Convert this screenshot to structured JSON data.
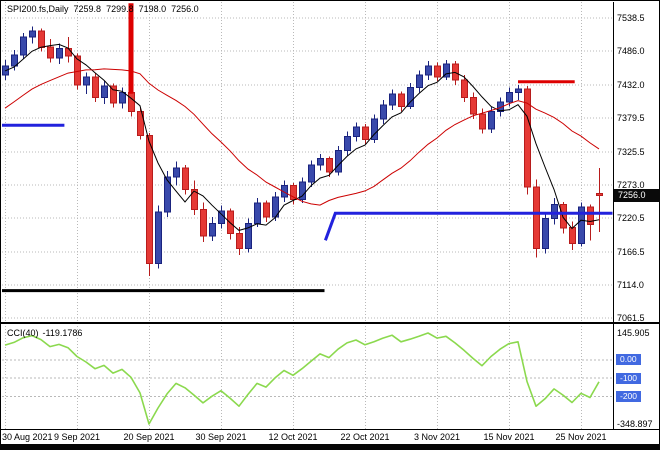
{
  "title": {
    "symbol_period": "SPI200.fs,Daily",
    "open": "7259.8",
    "high": "7299.8",
    "low": "7198.0",
    "close": "7256.0"
  },
  "colors": {
    "background": "#ffffff",
    "grid": "#b9b9b9",
    "bull": "#3949ab",
    "bull_border": "#1a237e",
    "bear": "#e53935",
    "bear_border": "#b71c1c",
    "ma_fast": "#000000",
    "ma_slow": "#cc0000",
    "cci_line": "#8bd94e",
    "badge_blue": "#4169e1",
    "price_badge_bg": "#0a0a0a",
    "object_blue": "#2222dd",
    "object_red": "#dd0000",
    "object_black": "#000000"
  },
  "chart_data": {
    "type": "candlestick",
    "symbol": "SPI200.fs",
    "timeframe": "Daily",
    "title": "SPI200.fs,Daily 7259.8 7299.8 7198.0 7256.0",
    "current_price": 7256.0,
    "current_price_label": "7256.0",
    "price_axis_labels": [
      "7538.5",
      "7486.0",
      "7432.0",
      "7379.5",
      "7325.5",
      "7273.0",
      "7220.5",
      "7166.5",
      "7114.0",
      "7061.5"
    ],
    "x_labels": [
      {
        "i": 0,
        "label": "30 Aug 2021"
      },
      {
        "i": 8,
        "label": "9 Sep 2021"
      },
      {
        "i": 16,
        "label": "20 Sep 2021"
      },
      {
        "i": 24,
        "label": "30 Sep 2021"
      },
      {
        "i": 32,
        "label": "12 Oct 2021"
      },
      {
        "i": 40,
        "label": "22 Oct 2021"
      },
      {
        "i": 48,
        "label": "3 Nov 2021"
      },
      {
        "i": 56,
        "label": "15 Nov 2021"
      },
      {
        "i": 64,
        "label": "25 Nov 2021"
      }
    ],
    "candles": [
      [
        7448,
        7472,
        7440,
        7462
      ],
      [
        7462,
        7488,
        7455,
        7480
      ],
      [
        7480,
        7515,
        7474,
        7508
      ],
      [
        7508,
        7525,
        7498,
        7518
      ],
      [
        7518,
        7522,
        7485,
        7492
      ],
      [
        7492,
        7505,
        7468,
        7475
      ],
      [
        7475,
        7498,
        7465,
        7490
      ],
      [
        7490,
        7508,
        7468,
        7478
      ],
      [
        7478,
        7482,
        7425,
        7432
      ],
      [
        7432,
        7452,
        7418,
        7445
      ],
      [
        7445,
        7450,
        7405,
        7412
      ],
      [
        7412,
        7438,
        7402,
        7430
      ],
      [
        7430,
        7434,
        7396,
        7403
      ],
      [
        7403,
        7428,
        7395,
        7420
      ],
      [
        7420,
        7424,
        7382,
        7390
      ],
      [
        7390,
        7396,
        7345,
        7352
      ],
      [
        7352,
        7356,
        7128,
        7148
      ],
      [
        7148,
        7240,
        7140,
        7230
      ],
      [
        7230,
        7295,
        7222,
        7286
      ],
      [
        7286,
        7310,
        7272,
        7300
      ],
      [
        7300,
        7305,
        7258,
        7266
      ],
      [
        7266,
        7280,
        7225,
        7234
      ],
      [
        7234,
        7245,
        7182,
        7192
      ],
      [
        7192,
        7222,
        7184,
        7212
      ],
      [
        7212,
        7240,
        7204,
        7232
      ],
      [
        7232,
        7236,
        7186,
        7196
      ],
      [
        7196,
        7206,
        7162,
        7172
      ],
      [
        7172,
        7220,
        7166,
        7212
      ],
      [
        7212,
        7252,
        7206,
        7244
      ],
      [
        7244,
        7248,
        7214,
        7222
      ],
      [
        7222,
        7262,
        7216,
        7254
      ],
      [
        7254,
        7280,
        7246,
        7272
      ],
      [
        7272,
        7276,
        7242,
        7250
      ],
      [
        7250,
        7285,
        7244,
        7278
      ],
      [
        7278,
        7312,
        7270,
        7305
      ],
      [
        7305,
        7322,
        7296,
        7315
      ],
      [
        7315,
        7318,
        7286,
        7294
      ],
      [
        7294,
        7335,
        7288,
        7328
      ],
      [
        7328,
        7358,
        7320,
        7350
      ],
      [
        7350,
        7372,
        7342,
        7365
      ],
      [
        7365,
        7370,
        7338,
        7345
      ],
      [
        7345,
        7385,
        7340,
        7378
      ],
      [
        7378,
        7408,
        7370,
        7400
      ],
      [
        7400,
        7425,
        7392,
        7418
      ],
      [
        7418,
        7422,
        7390,
        7398
      ],
      [
        7398,
        7435,
        7394,
        7428
      ],
      [
        7428,
        7455,
        7420,
        7448
      ],
      [
        7448,
        7470,
        7440,
        7462
      ],
      [
        7462,
        7468,
        7438,
        7445
      ],
      [
        7445,
        7472,
        7440,
        7465
      ],
      [
        7465,
        7470,
        7432,
        7440
      ],
      [
        7440,
        7448,
        7405,
        7412
      ],
      [
        7412,
        7420,
        7378,
        7386
      ],
      [
        7386,
        7395,
        7355,
        7362
      ],
      [
        7362,
        7398,
        7356,
        7390
      ],
      [
        7390,
        7412,
        7382,
        7405
      ],
      [
        7405,
        7428,
        7398,
        7420
      ],
      [
        7420,
        7432,
        7408,
        7426
      ],
      [
        7426,
        7430,
        7258,
        7270
      ],
      [
        7270,
        7282,
        7158,
        7172
      ],
      [
        7172,
        7230,
        7164,
        7220
      ],
      [
        7220,
        7252,
        7210,
        7242
      ],
      [
        7242,
        7246,
        7196,
        7205
      ],
      [
        7205,
        7215,
        7170,
        7180
      ],
      [
        7180,
        7245,
        7175,
        7238
      ],
      [
        7238,
        7242,
        7185,
        7210
      ],
      [
        7259.8,
        7299.8,
        7198.0,
        7256.0
      ]
    ],
    "ma_seed": [
      7280,
      7300,
      7320,
      7340,
      7355,
      7370,
      7360,
      7380,
      7395,
      7410,
      7400,
      7420,
      7435,
      7425,
      7440,
      7450,
      7445,
      7455,
      7460
    ],
    "ma_fast_period": 5,
    "ma_slow_period": 20,
    "overlay_lines": [
      {
        "name": "trendline-blue-left",
        "color": "#2222dd",
        "width": 3,
        "points": [
          [
            -0.33,
            7368
          ],
          [
            6.6,
            7368
          ]
        ]
      },
      {
        "name": "support-line-black",
        "color": "#000000",
        "width": 3,
        "points": [
          [
            -0.33,
            7105
          ],
          [
            35.5,
            7105
          ]
        ]
      },
      {
        "name": "support-line-blue",
        "color": "#2222dd",
        "width": 3,
        "points": [
          [
            35.6,
            7185
          ],
          [
            36.7,
            7228
          ],
          [
            67.5,
            7228
          ]
        ]
      },
      {
        "name": "resistance-line-red",
        "color": "#dd0000",
        "width": 3,
        "points": [
          [
            57,
            7437
          ],
          [
            63.3,
            7437
          ]
        ]
      },
      {
        "name": "vertical-line-red",
        "color": "#dd0000",
        "width": 5,
        "points": [
          [
            14,
            7562
          ],
          [
            14,
            7418
          ]
        ]
      }
    ],
    "indicator": {
      "name": "CCI",
      "period": 40,
      "label": "CCI(40)",
      "value_text": "-119.1786",
      "current_value": -119.1786,
      "scale_max": 145.905,
      "scale_min": -348.897,
      "scale_max_label": "145.905",
      "scale_min_label": "-348.897",
      "levels": [
        0,
        -100,
        -200
      ],
      "level_labels": [
        "0.00",
        "-100",
        "-200"
      ],
      "values": [
        80,
        95,
        120,
        132,
        110,
        72,
        84,
        66,
        18,
        -12,
        -48,
        -30,
        -72,
        -52,
        -95,
        -180,
        -348.897,
        -262,
        -185,
        -128,
        -152,
        -192,
        -234,
        -198,
        -168,
        -208,
        -252,
        -188,
        -128,
        -148,
        -98,
        -58,
        -84,
        -48,
        -8,
        32,
        12,
        58,
        92,
        108,
        82,
        98,
        118,
        134,
        98,
        112,
        128,
        145.905,
        118,
        128,
        92,
        52,
        8,
        -32,
        18,
        58,
        88,
        98,
        -118,
        -252,
        -212,
        -158,
        -192,
        -232,
        -182,
        -205,
        -119.1786
      ]
    }
  }
}
